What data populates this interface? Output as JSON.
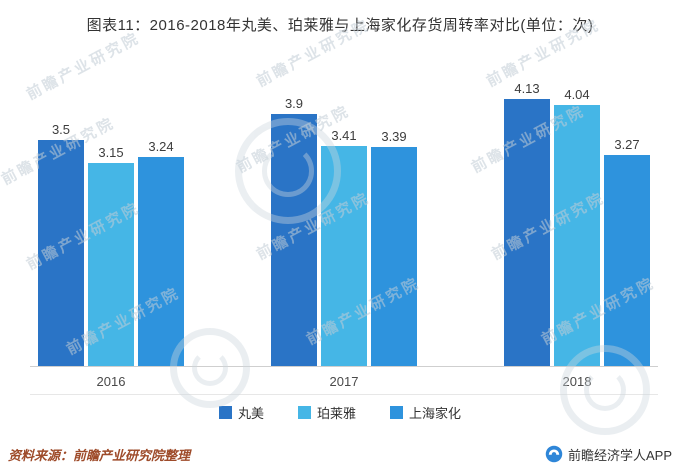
{
  "title": "图表11：2016-2018年丸美、珀莱雅与上海家化存货周转率对比(单位：次)",
  "chart_data": {
    "type": "bar",
    "categories": [
      "2016",
      "2017",
      "2018"
    ],
    "series": [
      {
        "name": "丸美",
        "color": "#2a74c6",
        "values": [
          3.5,
          3.9,
          4.13
        ]
      },
      {
        "name": "珀莱雅",
        "color": "#45b6e6",
        "values": [
          3.15,
          3.41,
          4.04
        ]
      },
      {
        "name": "上海家化",
        "color": "#2e93dd",
        "values": [
          3.24,
          3.39,
          3.27
        ]
      }
    ],
    "xlabel": "",
    "ylabel": "",
    "ylim": [
      0,
      4.8
    ],
    "grid": false,
    "legend_position": "bottom"
  },
  "footer": {
    "source": "资料来源：前瞻产业研究院整理",
    "brand": "前瞻经济学人APP"
  },
  "watermark": {
    "text": "前瞻产业研究院"
  },
  "palette": {
    "source_text": "#9e4b2a",
    "brand_blue": "#2e86d8"
  }
}
